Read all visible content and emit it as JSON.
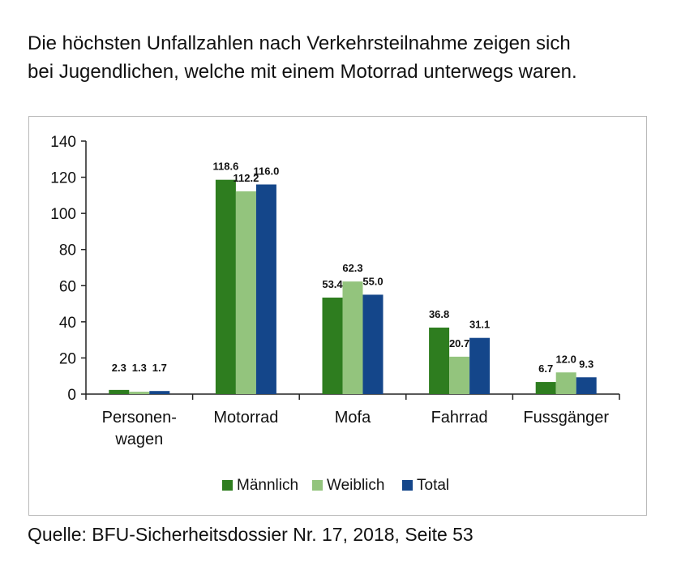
{
  "headline": {
    "line1": "Die höchsten Unfallzahlen nach Verkehrsteilnahme zeigen sich",
    "line2": "bei Jugendlichen, welche mit einem Motorrad unterwegs waren."
  },
  "source": "Quelle: BFU-Sicherheitsdossier Nr. 17, 2018, Seite 53",
  "colors": {
    "maennlich": "#2e7d1f",
    "weiblich": "#93c47d",
    "total": "#14468a",
    "axis": "#222222"
  },
  "chart_data": {
    "type": "bar",
    "categories": [
      [
        "Personen-",
        "wagen"
      ],
      [
        "Motorrad"
      ],
      [
        "Mofa"
      ],
      [
        "Fahrrad"
      ],
      [
        "Fussgänger"
      ]
    ],
    "series": [
      {
        "name": "Männlich",
        "values": [
          2.3,
          118.6,
          53.4,
          36.8,
          6.7
        ],
        "labels": [
          "2.3",
          "118.6",
          "53.4",
          "36.8",
          "6.7"
        ]
      },
      {
        "name": "Weiblich",
        "values": [
          1.3,
          112.2,
          62.3,
          20.7,
          12.0
        ],
        "labels": [
          "1.3",
          "112.2",
          "62.3",
          "20.7",
          "12.0"
        ]
      },
      {
        "name": "Total",
        "values": [
          1.7,
          116.0,
          55.0,
          31.1,
          9.3
        ],
        "labels": [
          "1.7",
          "116.0",
          "55.0",
          "31.1",
          "9.3"
        ]
      }
    ],
    "ylim": [
      0,
      140
    ],
    "yticks": [
      0,
      20,
      40,
      60,
      80,
      100,
      120,
      140
    ],
    "grid": false,
    "legend_position": "bottom"
  }
}
